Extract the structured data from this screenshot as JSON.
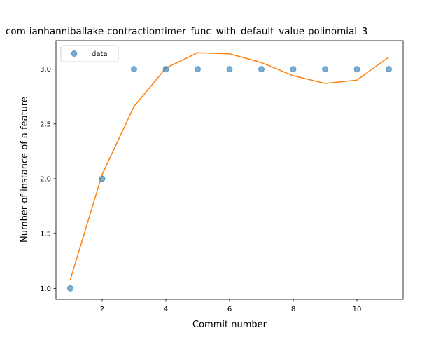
{
  "chart_data": {
    "type": "scatter",
    "title": "com-ianhanniballake-contractiontimer_func_with_default_value-polinomial_3",
    "xlabel": "Commit number",
    "ylabel": "Number of instance of a feature",
    "xlim": [
      0.55,
      11.45
    ],
    "ylim": [
      0.9,
      3.26
    ],
    "xticks": [
      2,
      4,
      6,
      8,
      10
    ],
    "yticks": [
      1.0,
      1.5,
      2.0,
      2.5,
      3.0
    ],
    "legend_position": "top-left",
    "grid": false,
    "series": [
      {
        "name": "data",
        "kind": "scatter",
        "color": "#1f77b4",
        "x": [
          1,
          2,
          3,
          4,
          5,
          6,
          7,
          8,
          9,
          10,
          11
        ],
        "y": [
          1,
          2,
          3,
          3,
          3,
          3,
          3,
          3,
          3,
          3,
          3
        ]
      },
      {
        "kind": "line",
        "color": "#ff7f0e",
        "x": [
          1,
          2,
          3,
          4,
          5,
          6,
          7,
          8,
          9,
          10,
          11
        ],
        "y": [
          1.08,
          2.04,
          2.66,
          3.01,
          3.15,
          3.14,
          3.06,
          2.94,
          2.87,
          2.9,
          3.11
        ]
      }
    ]
  }
}
